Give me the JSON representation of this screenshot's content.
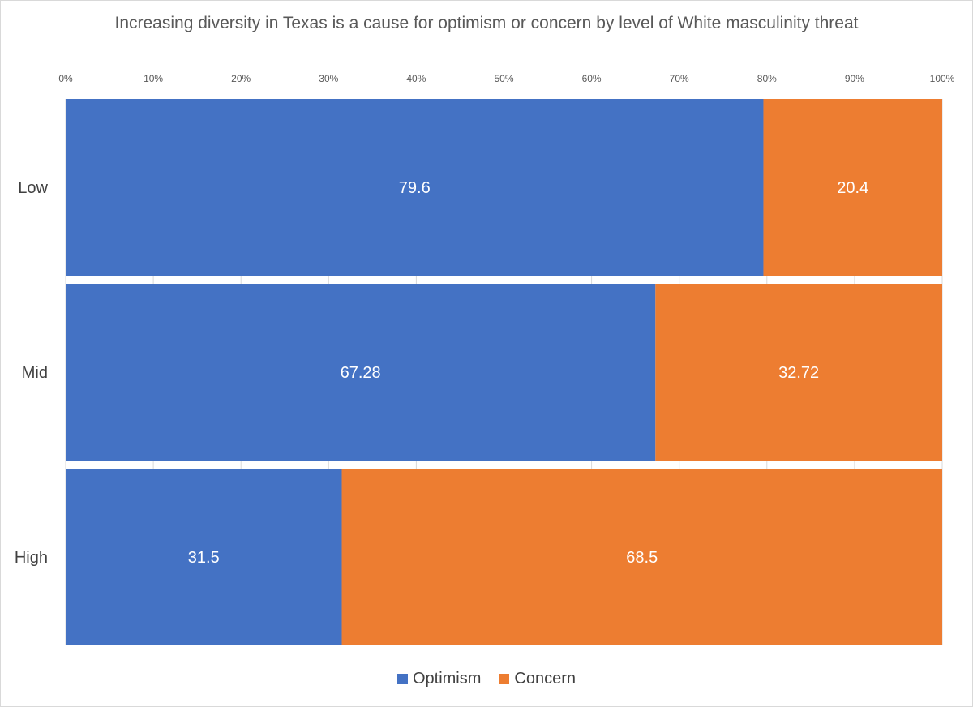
{
  "chart_data": {
    "type": "bar",
    "orientation": "horizontal",
    "stacked": "100%",
    "title": "Increasing diversity in Texas is a cause for optimism or concern by level of White masculinity threat",
    "categories": [
      "Low",
      "Mid",
      "High"
    ],
    "series": [
      {
        "name": "Optimism",
        "color": "#4472C4",
        "values": [
          79.6,
          67.28,
          31.5
        ],
        "labels": [
          "79.6",
          "67.28",
          "31.5"
        ]
      },
      {
        "name": "Concern",
        "color": "#ED7D31",
        "values": [
          20.4,
          32.72,
          68.5
        ],
        "labels": [
          "20.4",
          "32.72",
          "68.5"
        ]
      }
    ],
    "x_ticks": [
      "0%",
      "10%",
      "20%",
      "30%",
      "40%",
      "50%",
      "60%",
      "70%",
      "80%",
      "90%",
      "100%"
    ],
    "xlim": [
      0,
      100
    ],
    "axis_position": "top",
    "grid": true,
    "legend_position": "bottom"
  }
}
